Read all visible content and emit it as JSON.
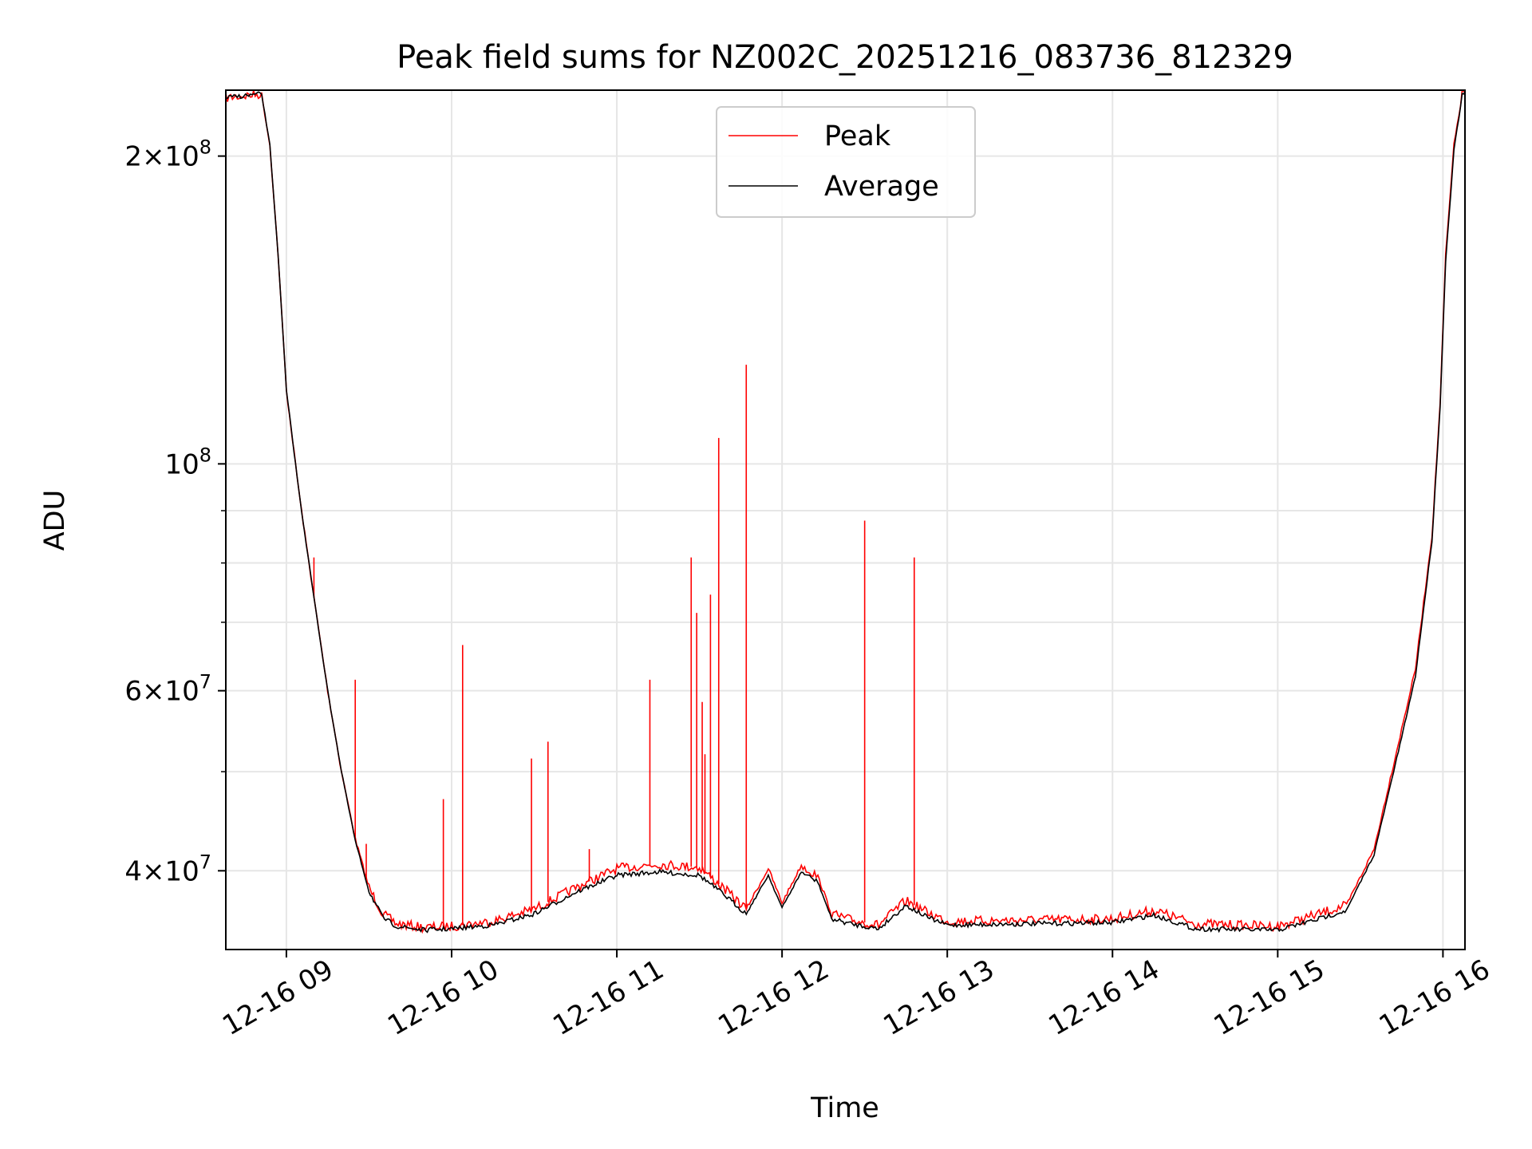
{
  "chart_data": {
    "type": "line",
    "title": "Peak field sums for NZ002C_20251216_083736_812329",
    "xlabel": "Time",
    "ylabel": "ADU",
    "yscale": "log",
    "xlim": [
      "2025-12-16 08:38",
      "2025-12-16 16:08"
    ],
    "ylim": [
      33500000,
      232000000
    ],
    "x_ticks": [
      {
        "t": "2025-12-16 09:00",
        "label": "12-16 09"
      },
      {
        "t": "2025-12-16 10:00",
        "label": "12-16 10"
      },
      {
        "t": "2025-12-16 11:00",
        "label": "12-16 11"
      },
      {
        "t": "2025-12-16 12:00",
        "label": "12-16 12"
      },
      {
        "t": "2025-12-16 13:00",
        "label": "12-16 13"
      },
      {
        "t": "2025-12-16 14:00",
        "label": "12-16 14"
      },
      {
        "t": "2025-12-16 15:00",
        "label": "12-16 15"
      },
      {
        "t": "2025-12-16 16:00",
        "label": "12-16 16"
      }
    ],
    "y_major_ticks": [
      {
        "v": 40000000,
        "mant": "4",
        "exp": "7"
      },
      {
        "v": 60000000,
        "mant": "6",
        "exp": "7"
      },
      {
        "v": 100000000,
        "mant": "",
        "exp": "8"
      },
      {
        "v": 200000000,
        "mant": "2",
        "exp": "8"
      }
    ],
    "y_minor_ticks": [
      50000000,
      70000000,
      80000000,
      90000000
    ],
    "grid": true,
    "legend_position": "top-center",
    "series": [
      {
        "name": "Peak",
        "color": "#ff0000",
        "points": [
          [
            "2025-12-16 08:38",
            228000000
          ],
          [
            "2025-12-16 08:44",
            229000000
          ],
          [
            "2025-12-16 08:51",
            230000000
          ],
          [
            "2025-12-16 08:54",
            205000000
          ],
          [
            "2025-12-16 08:57",
            160000000
          ],
          [
            "2025-12-16 09:00",
            118000000
          ],
          [
            "2025-12-16 09:05",
            92000000
          ],
          [
            "2025-12-16 09:10",
            74000000
          ],
          [
            "2025-12-16 09:15",
            60000000
          ],
          [
            "2025-12-16 09:20",
            50000000
          ],
          [
            "2025-12-16 09:25",
            43000000
          ],
          [
            "2025-12-16 09:30",
            38500000
          ],
          [
            "2025-12-16 09:35",
            36300000
          ],
          [
            "2025-12-16 09:40",
            35500000
          ],
          [
            "2025-12-16 09:50",
            35200000
          ],
          [
            "2025-12-16 10:00",
            35300000
          ],
          [
            "2025-12-16 10:15",
            35700000
          ],
          [
            "2025-12-16 10:30",
            36700000
          ],
          [
            "2025-12-16 10:45",
            38500000
          ],
          [
            "2025-12-16 11:00",
            40200000
          ],
          [
            "2025-12-16 11:15",
            40600000
          ],
          [
            "2025-12-16 11:30",
            40300000
          ],
          [
            "2025-12-16 11:40",
            38200000
          ],
          [
            "2025-12-16 11:47",
            36700000
          ],
          [
            "2025-12-16 11:55",
            40200000
          ],
          [
            "2025-12-16 12:00",
            37200000
          ],
          [
            "2025-12-16 12:07",
            40500000
          ],
          [
            "2025-12-16 12:13",
            39500000
          ],
          [
            "2025-12-16 12:18",
            36300000
          ],
          [
            "2025-12-16 12:25",
            35800000
          ],
          [
            "2025-12-16 12:35",
            35400000
          ],
          [
            "2025-12-16 12:45",
            37400000
          ],
          [
            "2025-12-16 12:53",
            36400000
          ],
          [
            "2025-12-16 13:00",
            35700000
          ],
          [
            "2025-12-16 13:30",
            35800000
          ],
          [
            "2025-12-16 14:00",
            35900000
          ],
          [
            "2025-12-16 14:15",
            36600000
          ],
          [
            "2025-12-16 14:30",
            35500000
          ],
          [
            "2025-12-16 15:00",
            35300000
          ],
          [
            "2025-12-16 15:15",
            36300000
          ],
          [
            "2025-12-16 15:25",
            37000000
          ],
          [
            "2025-12-16 15:35",
            42000000
          ],
          [
            "2025-12-16 15:45",
            55000000
          ],
          [
            "2025-12-16 15:50",
            63000000
          ],
          [
            "2025-12-16 15:56",
            85000000
          ],
          [
            "2025-12-16 15:59",
            115000000
          ],
          [
            "2025-12-16 16:01",
            160000000
          ],
          [
            "2025-12-16 16:04",
            205000000
          ],
          [
            "2025-12-16 16:07",
            230000000
          ],
          [
            "2025-12-16 16:08",
            232000000
          ]
        ]
      },
      {
        "name": "Average",
        "color": "#000000",
        "points": [
          [
            "2025-12-16 08:38",
            228000000
          ],
          [
            "2025-12-16 08:44",
            229000000
          ],
          [
            "2025-12-16 08:51",
            230000000
          ],
          [
            "2025-12-16 08:54",
            205000000
          ],
          [
            "2025-12-16 08:57",
            160000000
          ],
          [
            "2025-12-16 09:00",
            118000000
          ],
          [
            "2025-12-16 09:05",
            92000000
          ],
          [
            "2025-12-16 09:10",
            74000000
          ],
          [
            "2025-12-16 09:15",
            60000000
          ],
          [
            "2025-12-16 09:20",
            50000000
          ],
          [
            "2025-12-16 09:25",
            42800000
          ],
          [
            "2025-12-16 09:30",
            38200000
          ],
          [
            "2025-12-16 09:35",
            36000000
          ],
          [
            "2025-12-16 09:40",
            35300000
          ],
          [
            "2025-12-16 09:50",
            35000000
          ],
          [
            "2025-12-16 10:00",
            35100000
          ],
          [
            "2025-12-16 10:15",
            35400000
          ],
          [
            "2025-12-16 10:30",
            36300000
          ],
          [
            "2025-12-16 10:45",
            38100000
          ],
          [
            "2025-12-16 11:00",
            39600000
          ],
          [
            "2025-12-16 11:15",
            39900000
          ],
          [
            "2025-12-16 11:30",
            39600000
          ],
          [
            "2025-12-16 11:40",
            37700000
          ],
          [
            "2025-12-16 11:47",
            36300000
          ],
          [
            "2025-12-16 11:55",
            39600000
          ],
          [
            "2025-12-16 12:00",
            36800000
          ],
          [
            "2025-12-16 12:07",
            39900000
          ],
          [
            "2025-12-16 12:13",
            39000000
          ],
          [
            "2025-12-16 12:18",
            35900000
          ],
          [
            "2025-12-16 12:25",
            35500000
          ],
          [
            "2025-12-16 12:35",
            35100000
          ],
          [
            "2025-12-16 12:45",
            37000000
          ],
          [
            "2025-12-16 12:53",
            36000000
          ],
          [
            "2025-12-16 13:00",
            35400000
          ],
          [
            "2025-12-16 13:30",
            35500000
          ],
          [
            "2025-12-16 14:00",
            35600000
          ],
          [
            "2025-12-16 14:15",
            36200000
          ],
          [
            "2025-12-16 14:30",
            35100000
          ],
          [
            "2025-12-16 15:00",
            35000000
          ],
          [
            "2025-12-16 15:15",
            35900000
          ],
          [
            "2025-12-16 15:25",
            36600000
          ],
          [
            "2025-12-16 15:35",
            41500000
          ],
          [
            "2025-12-16 15:45",
            54000000
          ],
          [
            "2025-12-16 15:50",
            62000000
          ],
          [
            "2025-12-16 15:56",
            84000000
          ],
          [
            "2025-12-16 15:59",
            114000000
          ],
          [
            "2025-12-16 16:01",
            158000000
          ],
          [
            "2025-12-16 16:04",
            203000000
          ],
          [
            "2025-12-16 16:07",
            229000000
          ],
          [
            "2025-12-16 16:08",
            231000000
          ]
        ]
      }
    ],
    "peak_spikes": [
      {
        "t": "2025-12-16 09:10",
        "v": 81000000
      },
      {
        "t": "2025-12-16 09:25",
        "v": 61500000
      },
      {
        "t": "2025-12-16 09:29",
        "v": 42500000
      },
      {
        "t": "2025-12-16 09:57",
        "v": 47000000
      },
      {
        "t": "2025-12-16 10:04",
        "v": 66500000
      },
      {
        "t": "2025-12-16 10:29",
        "v": 51500000
      },
      {
        "t": "2025-12-16 10:35",
        "v": 53500000
      },
      {
        "t": "2025-12-16 10:50",
        "v": 42000000
      },
      {
        "t": "2025-12-16 11:12",
        "v": 61500000
      },
      {
        "t": "2025-12-16 11:27",
        "v": 81000000
      },
      {
        "t": "2025-12-16 11:29",
        "v": 71500000
      },
      {
        "t": "2025-12-16 11:31",
        "v": 58500000
      },
      {
        "t": "2025-12-16 11:32",
        "v": 52000000
      },
      {
        "t": "2025-12-16 11:34",
        "v": 74500000
      },
      {
        "t": "2025-12-16 11:37",
        "v": 106000000
      },
      {
        "t": "2025-12-16 11:47",
        "v": 125000000
      },
      {
        "t": "2025-12-16 12:30",
        "v": 88000000
      },
      {
        "t": "2025-12-16 12:48",
        "v": 81000000
      }
    ]
  }
}
